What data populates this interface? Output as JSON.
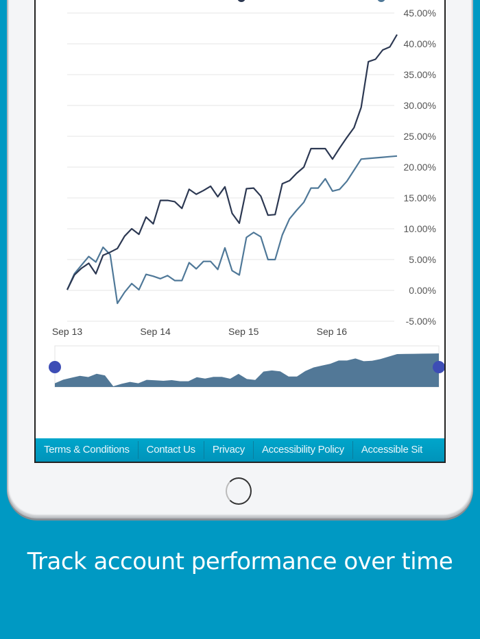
{
  "chart_data": {
    "type": "line",
    "y_tick_labels": [
      "45.00%",
      "40.00%",
      "35.00%",
      "30.00%",
      "25.00%",
      "20.00%",
      "15.00%",
      "10.00%",
      "5.00%",
      "0.00%",
      "-5.00%"
    ],
    "ylim": [
      -5,
      45
    ],
    "y_unit": "%",
    "grid": true,
    "x_ticks": [
      {
        "label": "Sep 13",
        "at": 0
      },
      {
        "label": "Sep 14",
        "at": 12.3
      },
      {
        "label": "Sep 15",
        "at": 24.6
      },
      {
        "label": "Sep 16",
        "at": 36.9
      }
    ],
    "series": [
      {
        "color": "#2c3852",
        "values": [
          0.1,
          2.5,
          3.6,
          4.4,
          2.7,
          5.7,
          6.2,
          6.8,
          8.8,
          10.0,
          9.1,
          11.9,
          10.8,
          14.6,
          14.6,
          14.4,
          13.3,
          16.4,
          15.6,
          16.2,
          16.9,
          15.2,
          16.8,
          12.5,
          10.9,
          16.5,
          16.6,
          15.3,
          12.2,
          12.3,
          17.3,
          17.8,
          19.0,
          20.0,
          23.0,
          23.0,
          23.0,
          21.3,
          23.1,
          24.8,
          26.4,
          29.7,
          37.1,
          37.5,
          39.0,
          39.5,
          41.5
        ]
      },
      {
        "color": "#4f7898",
        "values": [
          0.1,
          2.7,
          4.1,
          5.5,
          4.6,
          7.0,
          5.8,
          -2.1,
          -0.3,
          1.1,
          0.1,
          2.6,
          2.3,
          1.9,
          2.4,
          1.6,
          1.6,
          4.5,
          3.5,
          4.7,
          4.7,
          3.4,
          6.9,
          3.2,
          2.5,
          8.6,
          9.4,
          8.7,
          5.0,
          5.0,
          9.0,
          11.6,
          13.0,
          14.3,
          16.6,
          16.6,
          18.1,
          16.1,
          16.4,
          17.7,
          19.5,
          21.3,
          21.4,
          21.5,
          21.6,
          21.7,
          21.8
        ]
      }
    ],
    "navigator": {
      "series_index": 1,
      "fill": "#527897",
      "handle_color": "#3d4db5"
    }
  },
  "footer": {
    "links": [
      "Terms & Conditions",
      "Contact Us",
      "Privacy",
      "Accessibility Policy",
      "Accessible Sit"
    ],
    "color": "#00a0c6"
  },
  "caption": "Track account performance over time",
  "background_color": "#0099c3"
}
